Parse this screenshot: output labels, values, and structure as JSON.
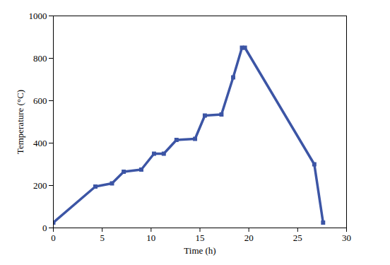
{
  "chart_data": {
    "type": "line",
    "x_label": "Time (h)",
    "y_label": "Temperature (°C)",
    "x": [
      0,
      4.3,
      6,
      7.2,
      9,
      10.3,
      11.3,
      12.6,
      14.5,
      15.5,
      17.2,
      18.4,
      19.3,
      19.6,
      26.7,
      27.6
    ],
    "values": [
      25,
      195,
      210,
      265,
      275,
      350,
      350,
      415,
      420,
      530,
      535,
      710,
      850,
      850,
      300,
      25
    ],
    "color": "#3c55a5",
    "marker": "square",
    "line_style": "solid",
    "xlim": [
      0,
      30
    ],
    "xticks": [
      0,
      5,
      10,
      15,
      20,
      25,
      30
    ],
    "ylim": [
      0,
      1000
    ],
    "yticks": [
      0,
      200,
      400,
      600,
      800,
      1000
    ],
    "grid": false
  }
}
